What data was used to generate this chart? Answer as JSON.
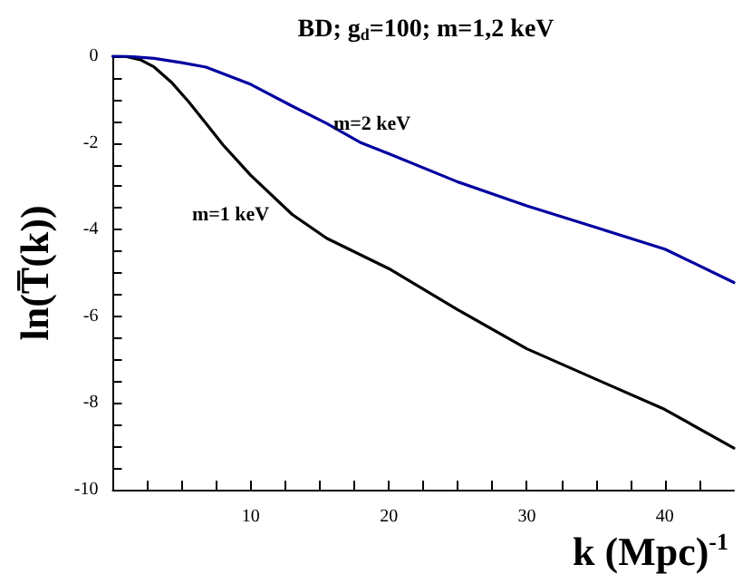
{
  "chart_data": {
    "type": "line",
    "title": "BD; g$_{d}$=100; m=1,2 keV",
    "xlabel": "k (Mpc)$^{-1}$",
    "ylabel": "ln(T̅(k))",
    "series": [
      {
        "color": "#000000",
        "x": [
          0,
          1,
          2,
          3,
          4.25,
          5.5,
          6.75,
          8,
          10,
          13,
          15.5,
          20,
          25,
          30,
          35,
          40,
          45
        ],
        "values": [
          0,
          -0.01,
          -0.08,
          -0.25,
          -0.6,
          -1.05,
          -1.55,
          -2.05,
          -2.75,
          -3.65,
          -4.2,
          -4.9,
          -5.85,
          -6.75,
          -7.45,
          -8.15,
          -9.04
        ]
      },
      {
        "color": "#0000a0",
        "x": [
          0,
          1,
          3,
          5,
          6.75,
          10,
          13,
          15.5,
          18,
          20,
          25,
          30,
          35,
          40,
          45
        ],
        "values": [
          0,
          0,
          -0.05,
          -0.15,
          -0.25,
          -0.65,
          -1.15,
          -1.55,
          -2.0,
          -2.25,
          -2.9,
          -3.45,
          -3.95,
          -4.45,
          -5.22
        ]
      }
    ],
    "annotations": [
      "m=2 keV",
      "m=1 keV"
    ],
    "xlim": [
      0,
      45
    ],
    "xticks": [
      {
        "value": 0,
        "label": null
      },
      {
        "value": 2.5,
        "label": null
      },
      {
        "value": 5,
        "label": null
      },
      {
        "value": 7.5,
        "label": null
      },
      10,
      {
        "value": 12.5,
        "label": null
      },
      {
        "value": 15,
        "label": null
      },
      {
        "value": 17.5,
        "label": null
      },
      20,
      {
        "value": 22.5,
        "label": null
      },
      {
        "value": 25,
        "label": null
      },
      {
        "value": 27.5,
        "label": null
      },
      30,
      {
        "value": 32.5,
        "label": null
      },
      {
        "value": 35,
        "label": null
      },
      {
        "value": 37.5,
        "label": null
      },
      40,
      {
        "value": 42.5,
        "label": null
      }
    ],
    "ylim": [
      -10,
      0
    ],
    "yticks": [
      -10,
      {
        "value": -9.5,
        "label": null
      },
      {
        "value": -9,
        "label": null
      },
      {
        "value": -8.5,
        "label": null
      },
      -8,
      {
        "value": -7.5,
        "label": null
      },
      {
        "value": -7,
        "label": null
      },
      {
        "value": -6.5,
        "label": null
      },
      -6,
      {
        "value": -5.5,
        "label": null
      },
      {
        "value": -5,
        "label": null
      },
      {
        "value": -4.5,
        "label": null
      },
      -4,
      {
        "value": -3.5,
        "label": null
      },
      {
        "value": -3,
        "label": null
      },
      {
        "value": -2.5,
        "label": null
      },
      -2,
      {
        "value": -1.5,
        "label": null
      },
      {
        "value": -1,
        "label": null
      },
      {
        "value": -0.5,
        "label": null
      },
      0
    ],
    "grid": false,
    "marker": "none",
    "line_style": "solid"
  }
}
